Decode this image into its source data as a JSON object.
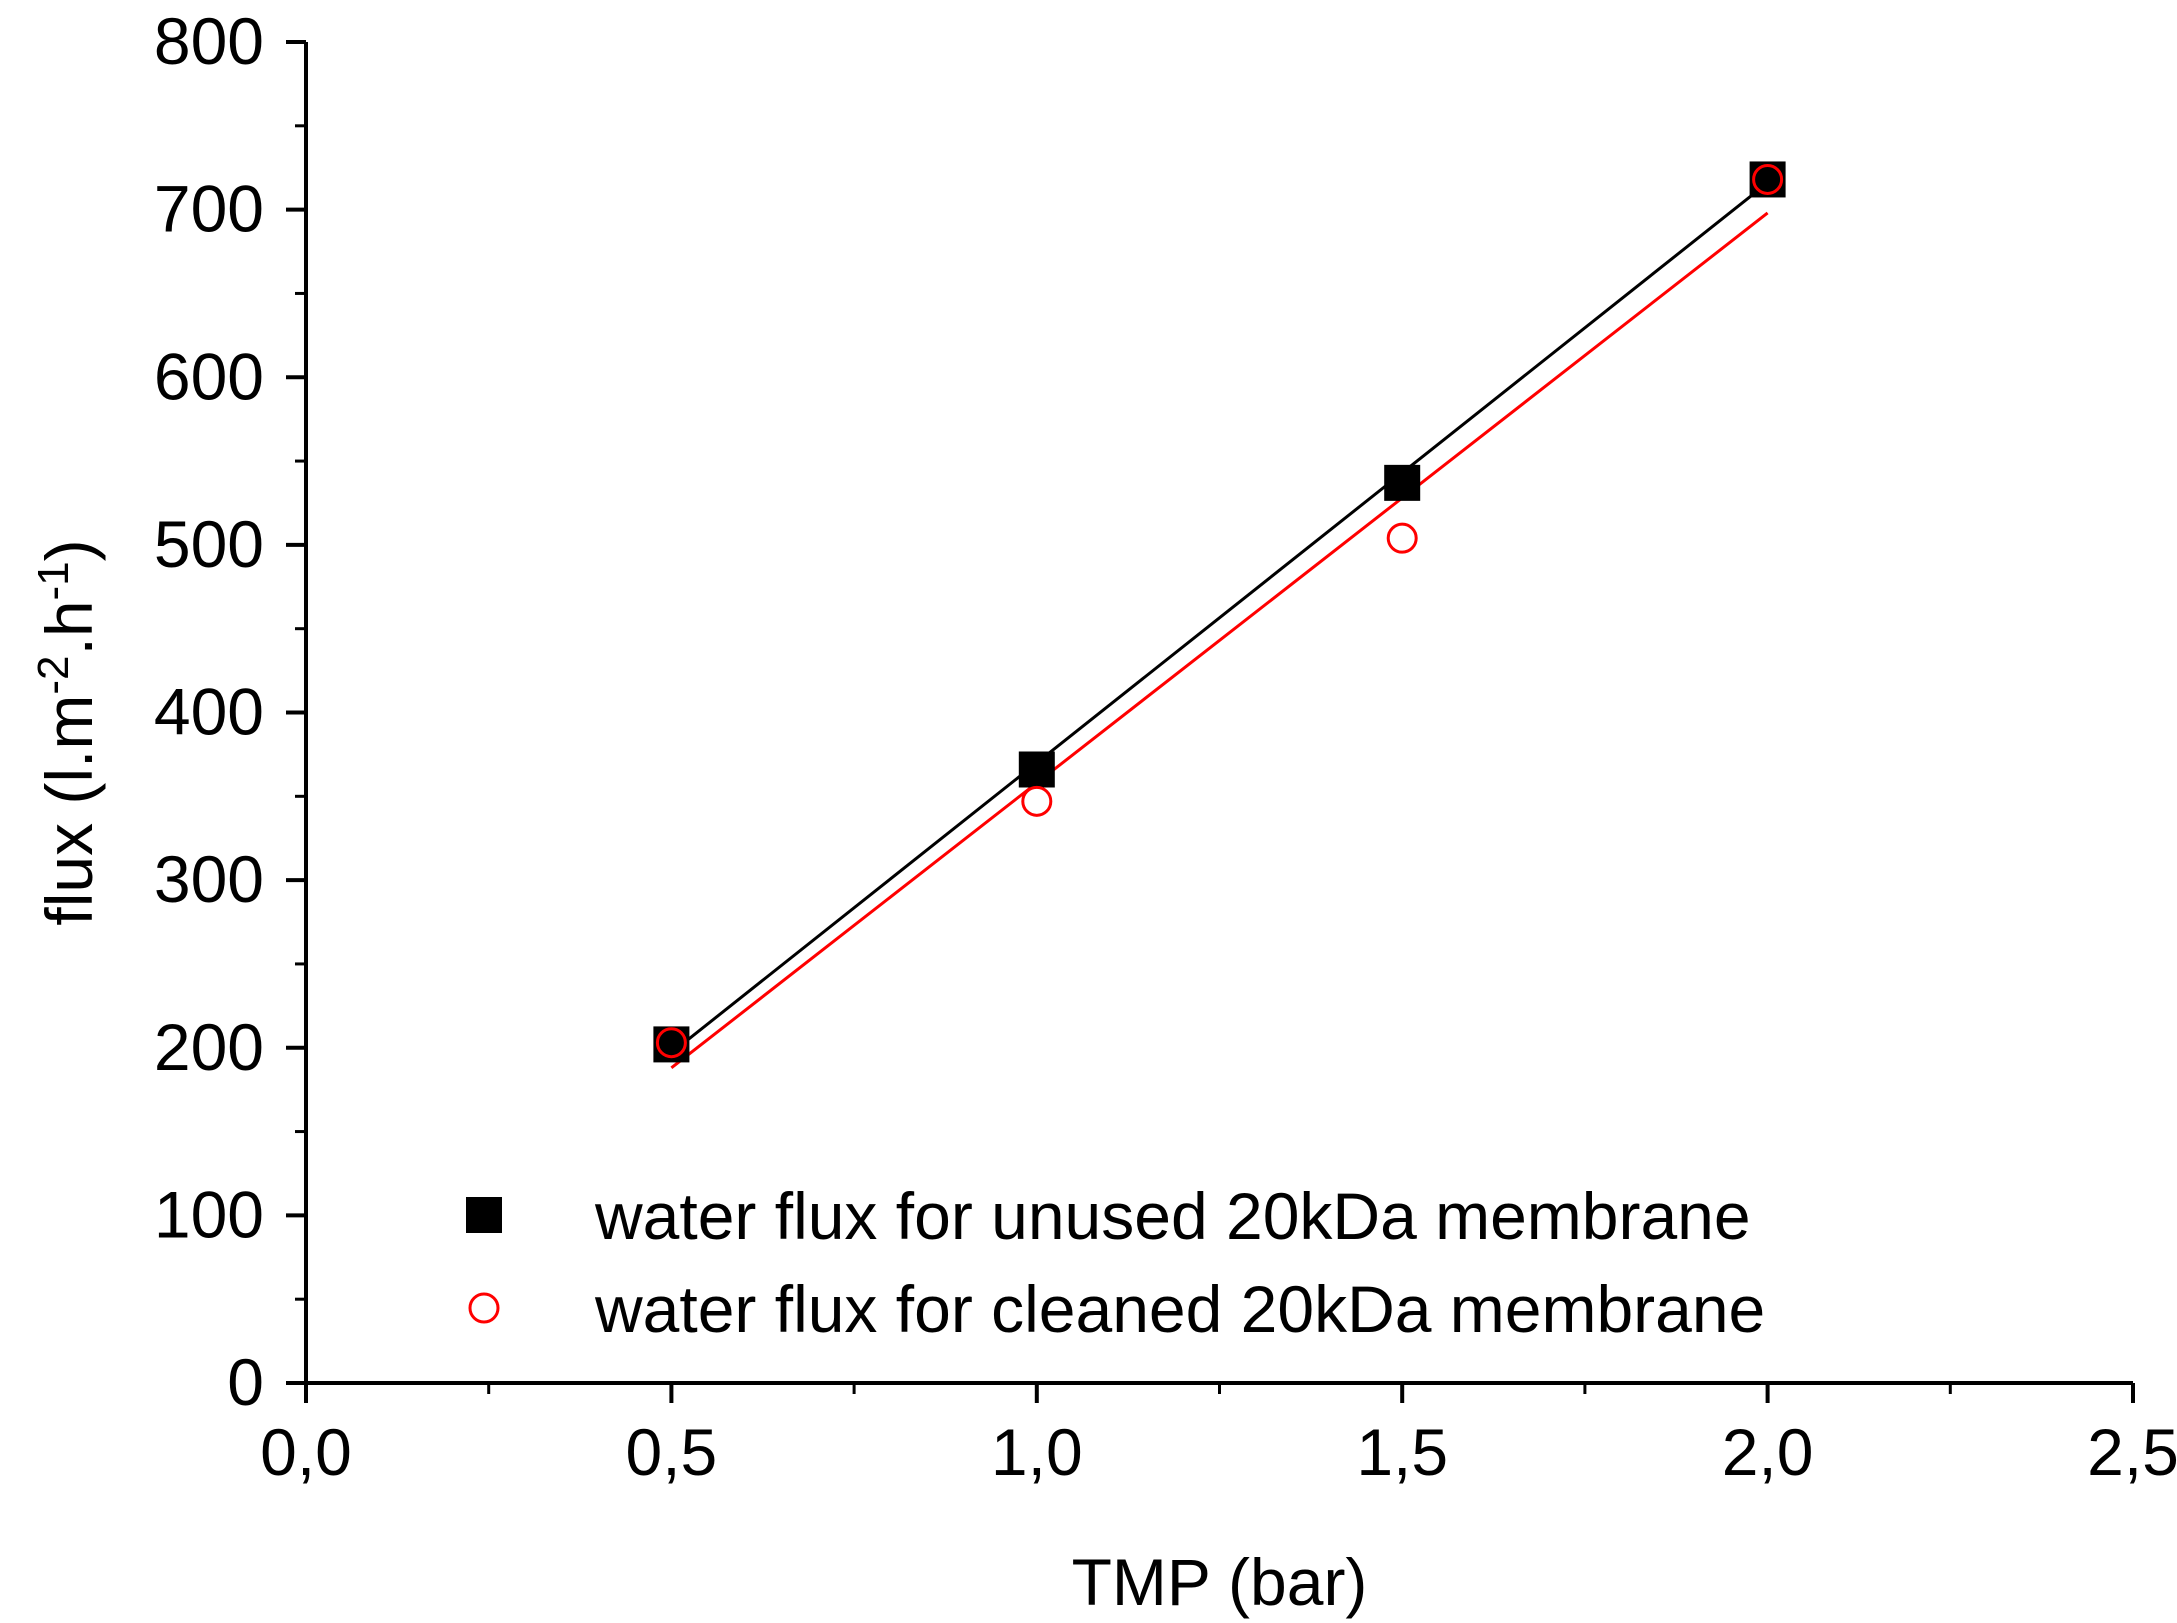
{
  "chart_data": {
    "type": "scatter",
    "xlabel": "TMP (bar)",
    "ylabel": {
      "text": "flux (l.m",
      "sup1": "-2",
      "mid": ".h",
      "sup2": "-1",
      "end": ")"
    },
    "xlim": [
      0,
      2.5
    ],
    "ylim": [
      0,
      800
    ],
    "x_ticks": [
      0,
      0.5,
      1.0,
      1.5,
      2.0,
      2.5
    ],
    "x_tick_labels": [
      "0,0",
      "0,5",
      "1,0",
      "1,5",
      "2,0",
      "2,5"
    ],
    "y_ticks": [
      0,
      100,
      200,
      300,
      400,
      500,
      600,
      700,
      800
    ],
    "y_tick_labels": [
      "0",
      "100",
      "200",
      "300",
      "400",
      "500",
      "600",
      "700",
      "800"
    ],
    "grid": false,
    "legend_position": "bottom-right",
    "series": [
      {
        "name": "water flux for unused 20kDa membrane",
        "marker": "filled-square",
        "color": "#000000",
        "x": [
          0.5,
          1.0,
          1.5,
          2.0
        ],
        "y": [
          202,
          366,
          537,
          718
        ],
        "fit_line": {
          "x": [
            0.5,
            2.0
          ],
          "y": [
            197,
            716
          ]
        }
      },
      {
        "name": "water flux for cleaned 20kDa membrane",
        "marker": "open-circle",
        "color": "#ff0000",
        "x": [
          0.5,
          1.0,
          1.5,
          2.0
        ],
        "y": [
          203,
          347,
          504,
          718
        ],
        "fit_line": {
          "x": [
            0.5,
            2.0
          ],
          "y": [
            188,
            698
          ]
        }
      }
    ]
  }
}
